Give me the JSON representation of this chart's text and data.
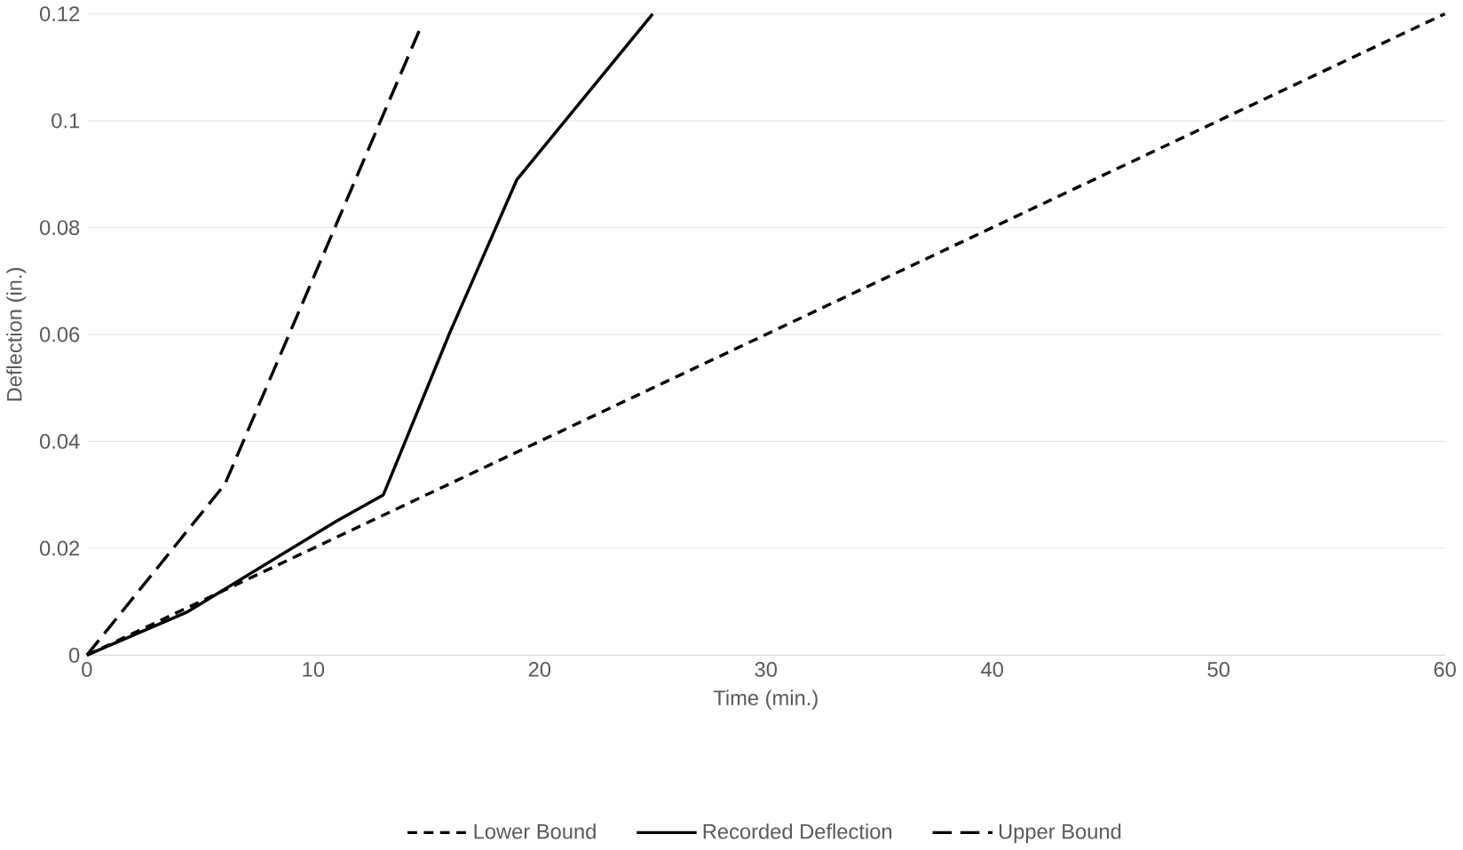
{
  "chart_data": {
    "type": "line",
    "xlabel": "Time (min.)",
    "ylabel": "Deflection (in.)",
    "xlim": [
      0,
      60
    ],
    "xticks": [
      0,
      10,
      20,
      30,
      40,
      50,
      60
    ],
    "ylim": [
      0,
      0.12
    ],
    "yticks": [
      0,
      0.02,
      0.04,
      0.06,
      0.08,
      0.1,
      0.12
    ],
    "grid": "y",
    "legend": "bottom",
    "series": [
      {
        "name": "Lower Bound",
        "color": "#000000",
        "line_style": "dashed",
        "x": [
          0,
          60
        ],
        "values": [
          0,
          0.12
        ]
      },
      {
        "name": "Recorded Deflection",
        "color": "#000000",
        "line_style": "solid",
        "x": [
          0,
          4.4,
          11,
          13.1,
          16,
          19,
          25
        ],
        "values": [
          0,
          0.008,
          0.025,
          0.03,
          0.06,
          0.089,
          0.12
        ]
      },
      {
        "name": "Upper Bound",
        "color": "#000000",
        "line_style": "longdash",
        "x": [
          0,
          6.1,
          14.7
        ],
        "values": [
          0,
          0.032,
          0.117
        ]
      }
    ]
  }
}
